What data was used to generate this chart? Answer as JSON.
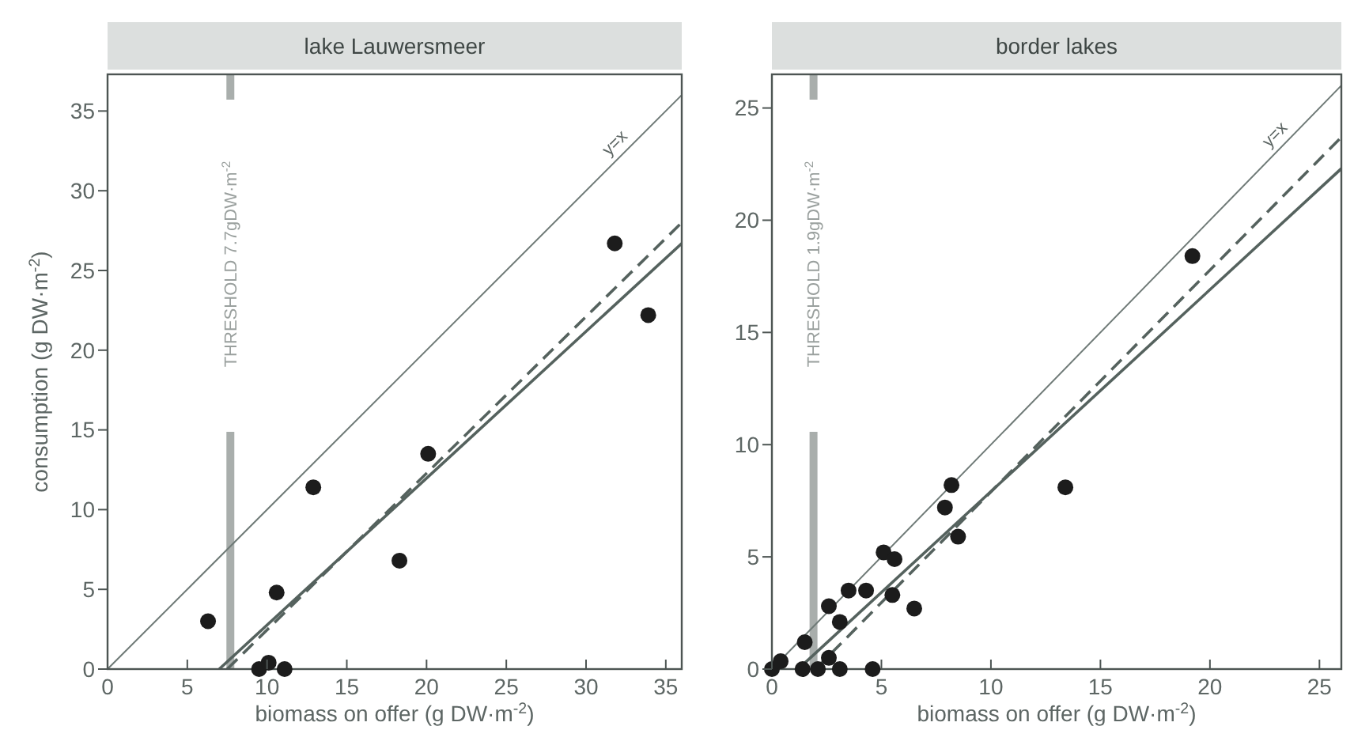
{
  "chart_data": [
    {
      "type": "scatter",
      "title": "lake Lauwersmeer",
      "xlabel": "biomass on offer (g DW·m$^{-2}$)",
      "ylabel": "consumption (g DW·m$^{-2}$)",
      "xlim": [
        0,
        36
      ],
      "ylim": [
        0,
        37.3
      ],
      "xticks": [
        0,
        5,
        10,
        15,
        20,
        25,
        30,
        35
      ],
      "yticks": [
        0,
        5,
        10,
        15,
        20,
        25,
        30,
        35
      ],
      "grid": false,
      "legend": false,
      "ref_lines": [
        {
          "axis": "x",
          "value": 7.7,
          "label": "THRESHOLD 7.7gDW·m$^{-2}$",
          "color": "#a9aeac"
        }
      ],
      "series": [
        {
          "marker": "circle",
          "color": "#1c1c1c",
          "x": [
            6.3,
            9.5,
            10.1,
            11.1,
            10.6,
            12.9,
            18.3,
            20.1,
            31.8,
            33.9
          ],
          "values": [
            3.0,
            0,
            0.4,
            0,
            4.8,
            11.4,
            6.8,
            13.5,
            26.7,
            22.2
          ]
        },
        {
          "type": "line",
          "name": "y=x",
          "color": "#6f7a77",
          "x": [
            0,
            36
          ],
          "values": [
            0,
            36
          ],
          "line_style": "solid"
        },
        {
          "type": "line",
          "color": "#55625e",
          "x": [
            7.0,
            36
          ],
          "values": [
            0,
            26.7
          ],
          "line_style": "solid"
        },
        {
          "type": "line",
          "color": "#55625e",
          "x": [
            7.5,
            36
          ],
          "values": [
            0,
            28.0
          ],
          "line_style": "dashed"
        }
      ]
    },
    {
      "type": "scatter",
      "title": "border lakes",
      "xlabel": "biomass on offer (g DW·m$^{-2}$)",
      "xlim": [
        0,
        26
      ],
      "ylim": [
        0,
        26.5
      ],
      "xticks": [
        0,
        5,
        10,
        15,
        20,
        25
      ],
      "yticks": [
        0,
        5,
        10,
        15,
        20,
        25
      ],
      "grid": false,
      "legend": false,
      "ref_lines": [
        {
          "axis": "x",
          "value": 1.9,
          "label": "THRESHOLD 1.9gDW·m$^{-2}$",
          "color": "#a9aeac"
        }
      ],
      "series": [
        {
          "marker": "circle",
          "color": "#1c1c1c",
          "x": [
            0,
            0.4,
            1.5,
            1.4,
            2.1,
            2.6,
            2.6,
            3.1,
            3.1,
            3.5,
            4.3,
            4.6,
            5.1,
            5.6,
            5.5,
            6.5,
            7.9,
            8.2,
            8.5,
            13.4,
            19.2
          ],
          "values": [
            0,
            0.35,
            1.2,
            0,
            0,
            0.5,
            2.8,
            2.1,
            0,
            3.5,
            3.5,
            0,
            5.2,
            4.9,
            3.3,
            2.7,
            7.2,
            8.2,
            5.9,
            8.1,
            18.4
          ]
        },
        {
          "type": "line",
          "name": "y=x",
          "color": "#6f7a77",
          "x": [
            0,
            26
          ],
          "values": [
            0,
            26
          ],
          "line_style": "solid"
        },
        {
          "type": "line",
          "color": "#55625e",
          "x": [
            1.2,
            26
          ],
          "values": [
            0,
            22.3
          ],
          "line_style": "solid"
        },
        {
          "type": "line",
          "color": "#55625e",
          "x": [
            2.0,
            26
          ],
          "values": [
            0,
            23.7
          ],
          "line_style": "dashed"
        }
      ]
    }
  ]
}
